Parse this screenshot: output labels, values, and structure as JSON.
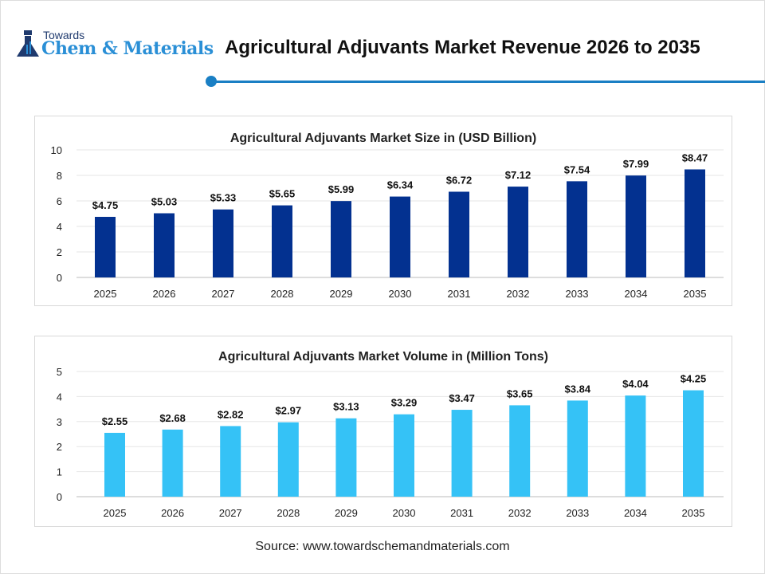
{
  "logo": {
    "line1": "Towards",
    "line2": "Chem & Materials"
  },
  "header": {
    "title": "Agricultural Adjuvants Market Revenue 2026 to 2035"
  },
  "chart_data": [
    {
      "type": "bar",
      "title": "Agricultural Adjuvants Market Size in (USD Billion)",
      "categories": [
        "2025",
        "2026",
        "2027",
        "2028",
        "2029",
        "2030",
        "2031",
        "2032",
        "2033",
        "2034",
        "2035"
      ],
      "values": [
        4.75,
        5.03,
        5.33,
        5.65,
        5.99,
        6.34,
        6.72,
        7.12,
        7.54,
        7.99,
        8.47
      ],
      "labels": [
        "$4.75",
        "$5.03",
        "$5.33",
        "$5.65",
        "$5.99",
        "$6.34",
        "$6.72",
        "$7.12",
        "$7.54",
        "$7.99",
        "$8.47"
      ],
      "ylim": [
        0,
        10
      ],
      "yticks": [
        "0",
        "2",
        "4",
        "6",
        "8",
        "10"
      ],
      "color": "#033190",
      "grid": true
    },
    {
      "type": "bar",
      "title": "Agricultural Adjuvants Market Volume in (Million Tons)",
      "categories": [
        "2025",
        "2026",
        "2027",
        "2028",
        "2029",
        "2030",
        "2031",
        "2032",
        "2033",
        "2034",
        "2035"
      ],
      "values": [
        2.55,
        2.68,
        2.82,
        2.97,
        3.13,
        3.29,
        3.47,
        3.65,
        3.84,
        4.04,
        4.25
      ],
      "labels": [
        "$2.55",
        "$2.68",
        "$2.82",
        "$2.97",
        "$3.13",
        "$3.29",
        "$3.47",
        "$3.65",
        "$3.84",
        "$4.04",
        "$4.25"
      ],
      "ylim": [
        0,
        5
      ],
      "yticks": [
        "0",
        "1",
        "2",
        "3",
        "4",
        "5"
      ],
      "color": "#35c2f6",
      "grid": true
    }
  ],
  "source": "Source: www.towardschemandmaterials.com"
}
